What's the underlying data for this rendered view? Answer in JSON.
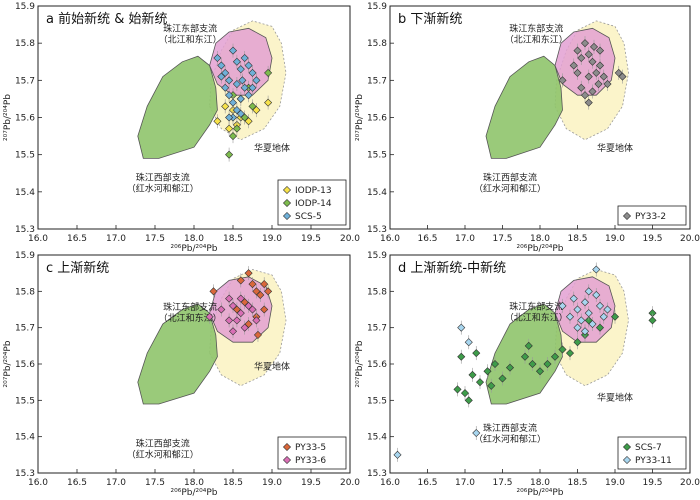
{
  "chart_data": [
    {
      "type": "scatter",
      "panel_label": "a 前始新统 & 始新统",
      "xlim": [
        16.0,
        20.0
      ],
      "ylim": [
        15.3,
        15.9
      ],
      "xticks": [
        "16.0",
        "16.5",
        "17.0",
        "17.5",
        "18.0",
        "18.5",
        "19.0",
        "19.5",
        "20.0"
      ],
      "yticks": [
        "15.3",
        "15.4",
        "15.5",
        "15.6",
        "15.7",
        "15.8",
        "15.9"
      ],
      "xlabel": "²⁰⁶Pb/²⁰⁴Pb",
      "ylabel": "²⁰⁷Pb/²⁰⁴Pb",
      "annotations": [
        {
          "lines": [
            "珠江东部支流",
            "（北江和东江）"
          ]
        },
        {
          "lines": [
            "珠江西部支流",
            "（红水河和郁江）"
          ]
        },
        {
          "lines": [
            "华夏地体"
          ]
        }
      ],
      "series": [
        {
          "name": "IODP-13",
          "color": "#f7e24a",
          "points": [
            [
              18.3,
              15.59
            ],
            [
              18.45,
              15.57
            ],
            [
              18.55,
              15.58
            ],
            [
              18.6,
              15.6
            ],
            [
              18.7,
              15.59
            ],
            [
              18.8,
              15.62
            ],
            [
              18.95,
              15.64
            ],
            [
              18.5,
              15.62
            ],
            [
              18.4,
              15.63
            ]
          ]
        },
        {
          "name": "IODP-14",
          "color": "#7dbb4d",
          "points": [
            [
              18.45,
              15.5
            ],
            [
              18.5,
              15.55
            ],
            [
              18.55,
              15.57
            ],
            [
              18.65,
              15.6
            ],
            [
              18.75,
              15.63
            ],
            [
              18.7,
              15.68
            ],
            [
              18.95,
              15.72
            ],
            [
              18.6,
              15.65
            ],
            [
              18.5,
              15.66
            ]
          ]
        },
        {
          "name": "SCS-5",
          "color": "#6fb0d8",
          "points": [
            [
              18.3,
              15.76
            ],
            [
              18.35,
              15.74
            ],
            [
              18.4,
              15.72
            ],
            [
              18.45,
              15.7
            ],
            [
              18.5,
              15.78
            ],
            [
              18.55,
              15.75
            ],
            [
              18.6,
              15.73
            ],
            [
              18.65,
              15.76
            ],
            [
              18.7,
              15.74
            ],
            [
              18.75,
              15.72
            ],
            [
              18.8,
              15.7
            ],
            [
              18.45,
              15.66
            ],
            [
              18.5,
              15.64
            ],
            [
              18.55,
              15.62
            ],
            [
              18.6,
              15.65
            ],
            [
              18.65,
              15.68
            ],
            [
              18.4,
              15.68
            ],
            [
              18.35,
              15.71
            ],
            [
              18.55,
              15.69
            ],
            [
              18.7,
              15.66
            ],
            [
              18.5,
              15.6
            ],
            [
              18.6,
              15.61
            ],
            [
              18.45,
              15.6
            ],
            [
              18.75,
              15.68
            ],
            [
              18.62,
              15.7
            ]
          ]
        }
      ]
    },
    {
      "type": "scatter",
      "panel_label": "b 下渐新统",
      "xlim": [
        16.0,
        20.0
      ],
      "ylim": [
        15.3,
        15.9
      ],
      "xticks": [
        "16.0",
        "16.5",
        "17.0",
        "17.5",
        "18.0",
        "18.5",
        "19.0",
        "19.5",
        "20.0"
      ],
      "yticks": [
        "15.3",
        "15.4",
        "15.5",
        "15.6",
        "15.7",
        "15.8",
        "15.9"
      ],
      "xlabel": "²⁰⁶Pb/²⁰⁴Pb",
      "ylabel": "²⁰⁷Pb/²⁰⁴Pb",
      "annotations": [
        {
          "lines": [
            "珠江东部支流",
            "（北江和东江）"
          ]
        },
        {
          "lines": [
            "珠江西部支流",
            "（红水河和郁江）"
          ]
        },
        {
          "lines": [
            "华夏地体"
          ]
        }
      ],
      "series": [
        {
          "name": "PY33-2",
          "color": "#8c8c8c",
          "points": [
            [
              18.3,
              15.7
            ],
            [
              18.45,
              15.74
            ],
            [
              18.5,
              15.78
            ],
            [
              18.55,
              15.76
            ],
            [
              18.6,
              15.8
            ],
            [
              18.65,
              15.77
            ],
            [
              18.7,
              15.75
            ],
            [
              18.72,
              15.79
            ],
            [
              18.75,
              15.72
            ],
            [
              18.8,
              15.74
            ],
            [
              18.85,
              15.71
            ],
            [
              18.9,
              15.69
            ],
            [
              19.05,
              15.72
            ],
            [
              19.1,
              15.71
            ],
            [
              18.55,
              15.68
            ],
            [
              18.6,
              15.66
            ],
            [
              18.65,
              15.64
            ],
            [
              18.7,
              15.67
            ],
            [
              18.78,
              15.69
            ],
            [
              18.65,
              15.71
            ],
            [
              18.5,
              15.72
            ],
            [
              18.8,
              15.78
            ]
          ]
        }
      ]
    },
    {
      "type": "scatter",
      "panel_label": "c 上渐新统",
      "xlim": [
        16.0,
        20.0
      ],
      "ylim": [
        15.3,
        15.9
      ],
      "xticks": [
        "16.0",
        "16.5",
        "17.0",
        "17.5",
        "18.0",
        "18.5",
        "19.0",
        "19.5",
        "20.0"
      ],
      "yticks": [
        "15.3",
        "15.4",
        "15.5",
        "15.6",
        "15.7",
        "15.8",
        "15.9"
      ],
      "xlabel": "²⁰⁶Pb/²⁰⁴Pb",
      "ylabel": "²⁰⁷Pb/²⁰⁴Pb",
      "annotations": [
        {
          "lines": [
            "珠江东部支流",
            "（北江和东江）"
          ]
        },
        {
          "lines": [
            "珠江西部支流",
            "（红水河和郁江）"
          ]
        },
        {
          "lines": [
            "华夏地体"
          ]
        }
      ],
      "series": [
        {
          "name": "PY33-5",
          "color": "#d9673b",
          "points": [
            [
              18.25,
              15.8
            ],
            [
              18.6,
              15.83
            ],
            [
              18.7,
              15.85
            ],
            [
              18.75,
              15.82
            ],
            [
              18.8,
              15.8
            ],
            [
              18.85,
              15.79
            ],
            [
              18.9,
              15.82
            ],
            [
              18.95,
              15.8
            ],
            [
              18.65,
              15.77
            ],
            [
              18.55,
              15.75
            ],
            [
              18.8,
              15.73
            ],
            [
              18.82,
              15.68
            ],
            [
              18.7,
              15.71
            ],
            [
              18.9,
              15.75
            ]
          ]
        },
        {
          "name": "PY33-6",
          "color": "#d96fb5",
          "points": [
            [
              18.2,
              15.73
            ],
            [
              18.35,
              15.75
            ],
            [
              18.45,
              15.78
            ],
            [
              18.5,
              15.76
            ],
            [
              18.55,
              15.72
            ],
            [
              18.6,
              15.74
            ],
            [
              18.65,
              15.7
            ],
            [
              18.7,
              15.76
            ],
            [
              18.75,
              15.75
            ],
            [
              18.8,
              15.72
            ],
            [
              18.5,
              15.69
            ],
            [
              18.6,
              15.78
            ],
            [
              18.45,
              15.72
            ]
          ]
        }
      ]
    },
    {
      "type": "scatter",
      "panel_label": "d 上渐新统-中新统",
      "xlim": [
        16.0,
        20.0
      ],
      "ylim": [
        15.3,
        15.9
      ],
      "xticks": [
        "16.0",
        "16.5",
        "17.0",
        "17.5",
        "18.0",
        "18.5",
        "19.0",
        "19.5",
        "20.0"
      ],
      "yticks": [
        "15.3",
        "15.4",
        "15.5",
        "15.6",
        "15.7",
        "15.8",
        "15.9"
      ],
      "xlabel": "²⁰⁶Pb/²⁰⁴Pb",
      "ylabel": "²⁰⁷Pb/²⁰⁴Pb",
      "annotations": [
        {
          "lines": [
            "珠江东部支流",
            "（北江和东江）"
          ]
        },
        {
          "lines": [
            "珠江西部支流",
            "（红水河和郁江）"
          ]
        },
        {
          "lines": [
            "华夏地体"
          ]
        }
      ],
      "series": [
        {
          "name": "SCS-7",
          "color": "#3e9c4a",
          "points": [
            [
              16.9,
              15.53
            ],
            [
              16.95,
              15.62
            ],
            [
              17.0,
              15.52
            ],
            [
              17.05,
              15.5
            ],
            [
              17.1,
              15.57
            ],
            [
              17.15,
              15.63
            ],
            [
              17.2,
              15.55
            ],
            [
              17.3,
              15.58
            ],
            [
              17.35,
              15.54
            ],
            [
              17.4,
              15.6
            ],
            [
              17.5,
              15.56
            ],
            [
              17.6,
              15.59
            ],
            [
              17.8,
              15.62
            ],
            [
              17.85,
              15.65
            ],
            [
              17.9,
              15.6
            ],
            [
              18.0,
              15.58
            ],
            [
              18.1,
              15.6
            ],
            [
              18.2,
              15.62
            ],
            [
              18.3,
              15.64
            ],
            [
              18.4,
              15.63
            ],
            [
              18.5,
              15.66
            ],
            [
              18.6,
              15.68
            ],
            [
              18.65,
              15.72
            ],
            [
              18.8,
              15.7
            ],
            [
              19.0,
              15.73
            ],
            [
              19.5,
              15.74
            ],
            [
              19.5,
              15.72
            ]
          ]
        },
        {
          "name": "PY33-11",
          "color": "#a8d6ef",
          "points": [
            [
              16.1,
              15.35
            ],
            [
              16.95,
              15.7
            ],
            [
              17.05,
              15.66
            ],
            [
              17.15,
              15.41
            ],
            [
              18.3,
              15.76
            ],
            [
              18.4,
              15.73
            ],
            [
              18.45,
              15.78
            ],
            [
              18.5,
              15.75
            ],
            [
              18.55,
              15.72
            ],
            [
              18.6,
              15.77
            ],
            [
              18.65,
              15.74
            ],
            [
              18.7,
              15.71
            ],
            [
              18.75,
              15.79
            ],
            [
              18.8,
              15.76
            ],
            [
              18.85,
              15.73
            ],
            [
              18.9,
              15.75
            ],
            [
              18.75,
              15.86
            ],
            [
              18.6,
              15.69
            ],
            [
              18.5,
              15.7
            ],
            [
              18.65,
              15.8
            ]
          ]
        }
      ]
    }
  ]
}
